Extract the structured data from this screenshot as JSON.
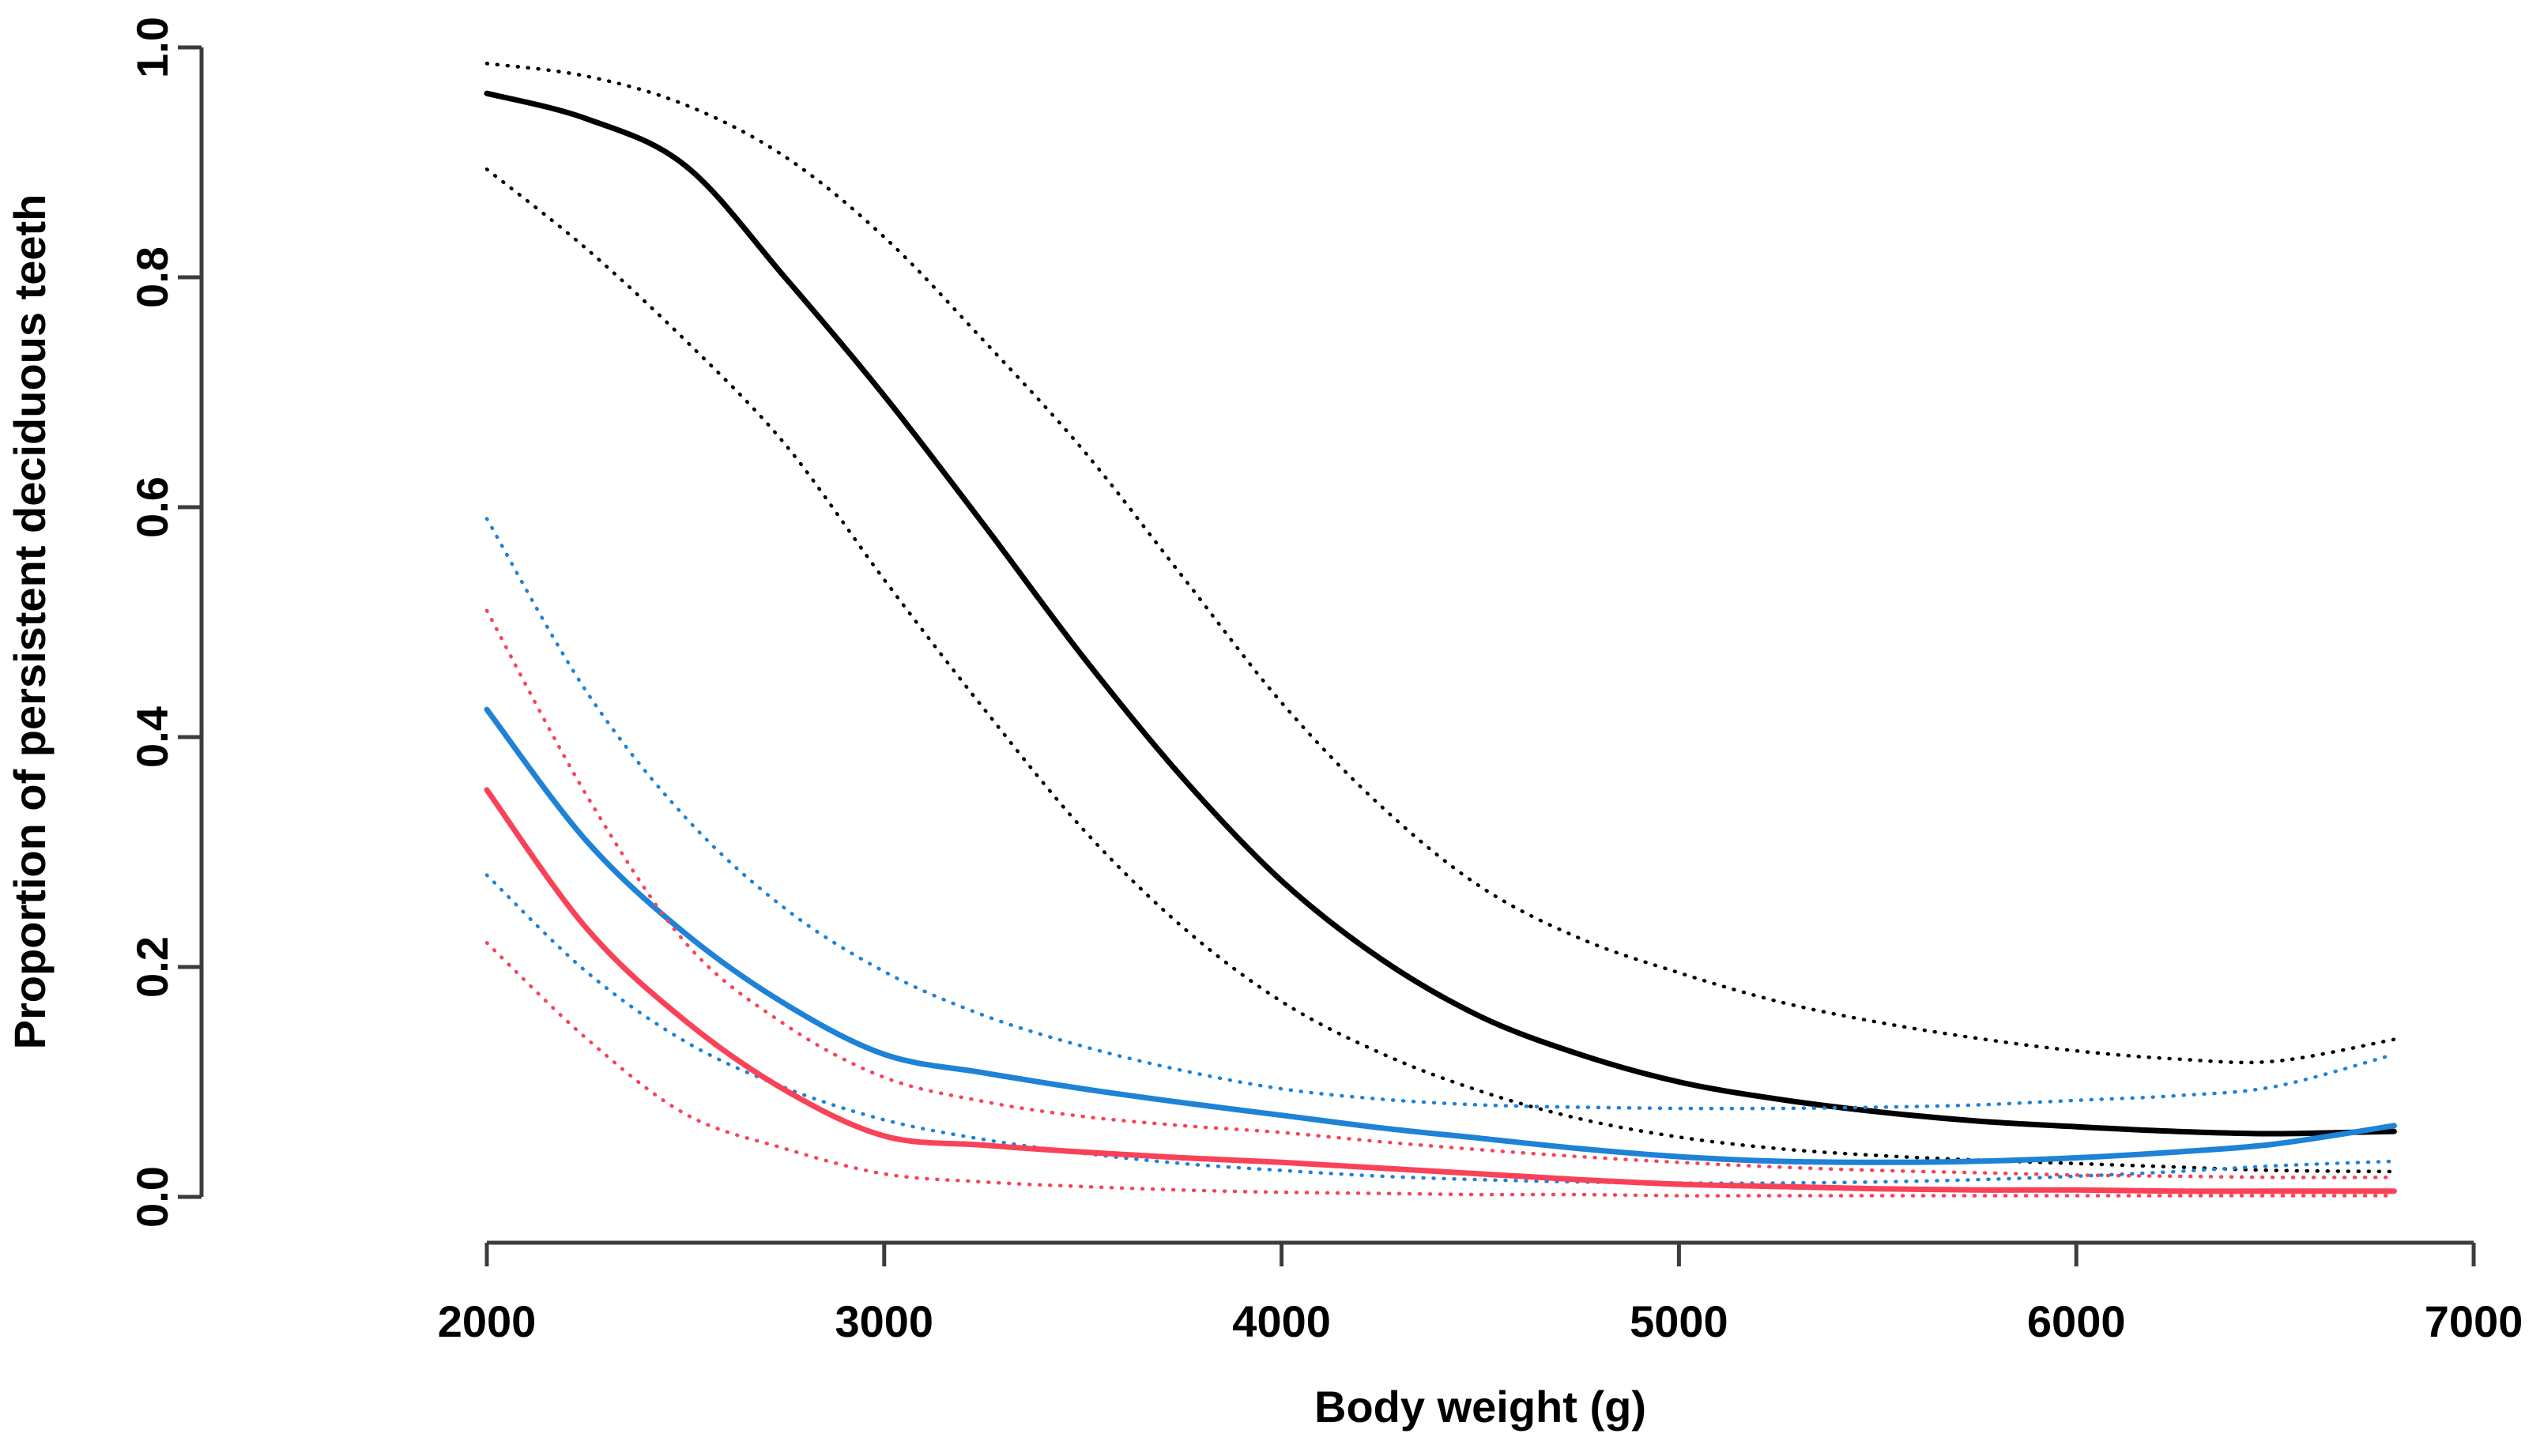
{
  "chart_data": {
    "type": "line",
    "title": "",
    "xlabel": "Body weight (g)",
    "ylabel": "Proportion of persistent deciduous teeth",
    "xlim": [
      2000,
      7000
    ],
    "ylim": [
      0.0,
      1.0
    ],
    "grid": false,
    "legend": "none",
    "x_ticks": [
      2000,
      3000,
      4000,
      5000,
      6000,
      7000
    ],
    "x_tick_labels": [
      "2000",
      "3000",
      "4000",
      "5000",
      "6000",
      "7000"
    ],
    "y_ticks": [
      0.0,
      0.2,
      0.4,
      0.6,
      0.8,
      1.0
    ],
    "y_tick_labels": [
      "0.0",
      "0.2",
      "0.4",
      "0.6",
      "0.8",
      "1.0"
    ],
    "colors": {
      "black_series": "#000000",
      "blue_series": "#1E82D6",
      "red_series": "#F94258",
      "axis": "#3c3c3c",
      "label": "#000000"
    },
    "x": [
      2000,
      2250,
      2500,
      2750,
      3000,
      3250,
      3500,
      3750,
      4000,
      4250,
      4500,
      4750,
      5000,
      5250,
      5500,
      5750,
      6000,
      6250,
      6500,
      6800
    ],
    "series": [
      {
        "name": "black-fit",
        "color": "#000000",
        "style": "solid",
        "values": [
          0.96,
          0.938,
          0.897,
          0.8,
          0.697,
          0.585,
          0.47,
          0.365,
          0.275,
          0.207,
          0.157,
          0.124,
          0.1,
          0.085,
          0.074,
          0.066,
          0.061,
          0.057,
          0.055,
          0.057
        ]
      },
      {
        "name": "black-upper-ci",
        "color": "#000000",
        "style": "dotted",
        "values": [
          0.986,
          0.975,
          0.95,
          0.905,
          0.835,
          0.745,
          0.65,
          0.54,
          0.43,
          0.34,
          0.27,
          0.225,
          0.195,
          0.17,
          0.152,
          0.138,
          0.127,
          0.12,
          0.118,
          0.137
        ]
      },
      {
        "name": "black-lower-ci",
        "color": "#000000",
        "style": "dotted",
        "values": [
          0.894,
          0.825,
          0.745,
          0.655,
          0.537,
          0.425,
          0.32,
          0.235,
          0.17,
          0.125,
          0.092,
          0.068,
          0.052,
          0.042,
          0.036,
          0.032,
          0.029,
          0.026,
          0.023,
          0.022
        ]
      },
      {
        "name": "blue-fit",
        "color": "#1E82D6",
        "style": "solid",
        "values": [
          0.424,
          0.31,
          0.229,
          0.168,
          0.124,
          0.108,
          0.094,
          0.082,
          0.071,
          0.06,
          0.051,
          0.042,
          0.035,
          0.031,
          0.03,
          0.031,
          0.034,
          0.039,
          0.046,
          0.062
        ]
      },
      {
        "name": "blue-upper-ci",
        "color": "#1E82D6",
        "style": "dotted",
        "values": [
          0.59,
          0.44,
          0.33,
          0.251,
          0.196,
          0.158,
          0.131,
          0.11,
          0.094,
          0.085,
          0.08,
          0.078,
          0.077,
          0.077,
          0.078,
          0.08,
          0.084,
          0.088,
          0.096,
          0.124
        ]
      },
      {
        "name": "blue-lower-ci",
        "color": "#1E82D6",
        "style": "dotted",
        "values": [
          0.28,
          0.196,
          0.135,
          0.095,
          0.067,
          0.05,
          0.038,
          0.029,
          0.023,
          0.018,
          0.015,
          0.013,
          0.012,
          0.012,
          0.013,
          0.015,
          0.018,
          0.022,
          0.027,
          0.031
        ]
      },
      {
        "name": "red-fit",
        "color": "#F94258",
        "style": "solid",
        "values": [
          0.354,
          0.234,
          0.153,
          0.093,
          0.053,
          0.045,
          0.039,
          0.034,
          0.03,
          0.025,
          0.02,
          0.015,
          0.011,
          0.009,
          0.007,
          0.006,
          0.006,
          0.005,
          0.005,
          0.005
        ]
      },
      {
        "name": "red-upper-ci",
        "color": "#F94258",
        "style": "dotted",
        "values": [
          0.51,
          0.35,
          0.221,
          0.15,
          0.104,
          0.083,
          0.07,
          0.062,
          0.056,
          0.048,
          0.041,
          0.035,
          0.03,
          0.026,
          0.023,
          0.021,
          0.019,
          0.018,
          0.017,
          0.017
        ]
      },
      {
        "name": "red-lower-ci",
        "color": "#F94258",
        "style": "dotted",
        "values": [
          0.221,
          0.138,
          0.072,
          0.042,
          0.02,
          0.013,
          0.009,
          0.006,
          0.004,
          0.003,
          0.002,
          0.002,
          0.001,
          0.001,
          0.001,
          0.001,
          0.001,
          0.001,
          0.001,
          0.001
        ]
      }
    ]
  }
}
